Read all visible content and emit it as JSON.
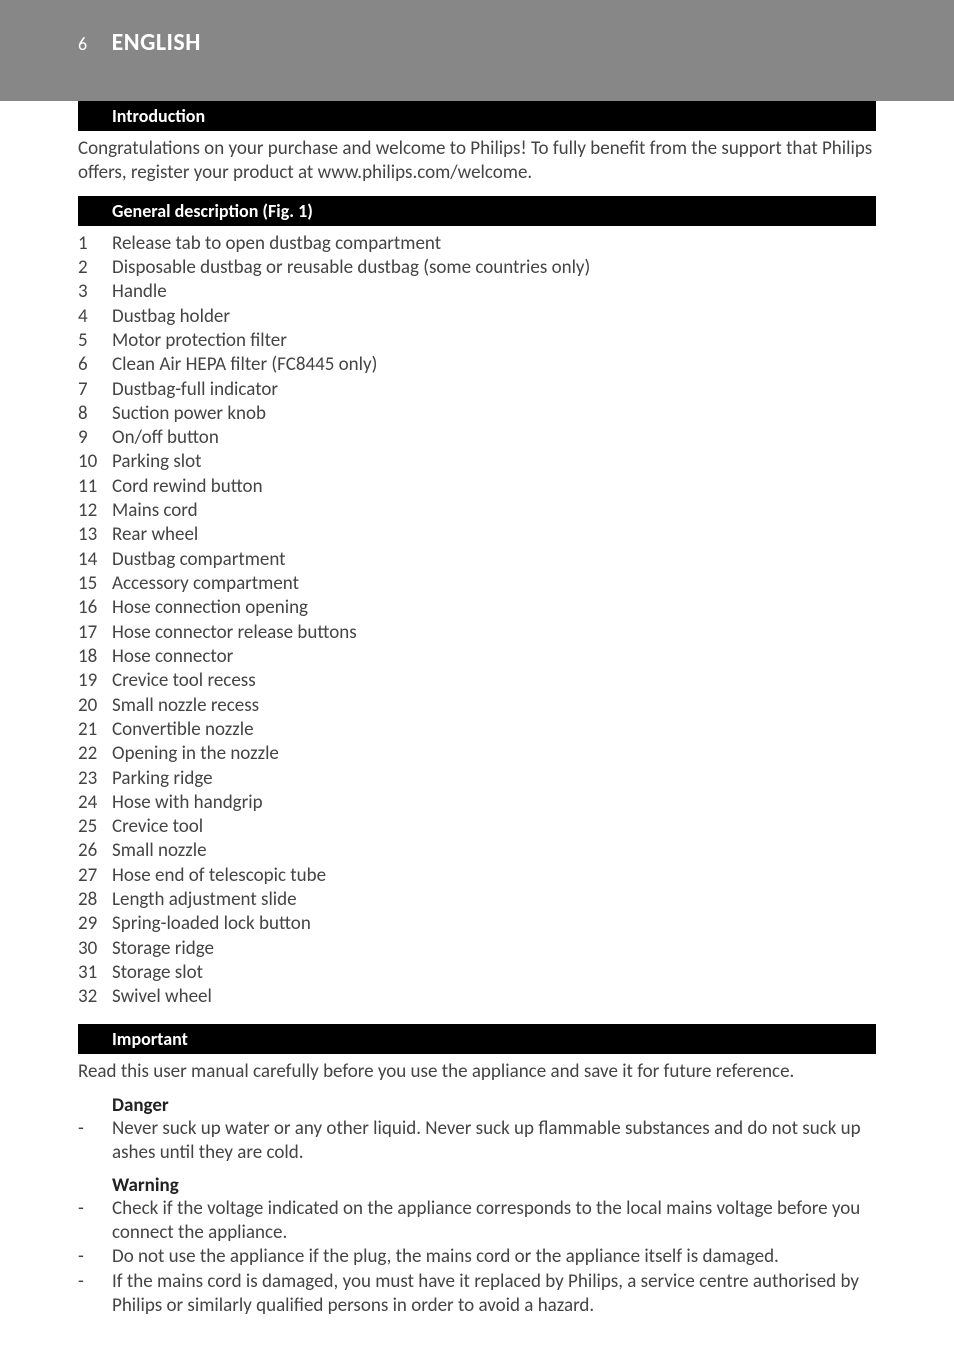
{
  "header": {
    "page_number": "6",
    "language": "ENGLISH"
  },
  "sections": {
    "introduction": {
      "heading": "Introduction",
      "text": "Congratulations on your purchase and welcome to Philips! To fully benefit from the support that Philips offers, register your product at www.philips.com/welcome."
    },
    "general_description": {
      "heading": "General description (Fig. 1)",
      "items": [
        "Release tab to open dustbag compartment",
        "Disposable dustbag or reusable dustbag (some countries only)",
        "Handle",
        "Dustbag holder",
        "Motor protection filter",
        "Clean Air HEPA filter (FC8445 only)",
        "Dustbag-full indicator",
        "Suction power knob",
        "On/off button",
        "Parking slot",
        "Cord rewind button",
        "Mains cord",
        "Rear wheel",
        "Dustbag compartment",
        "Accessory compartment",
        "Hose connection opening",
        "Hose connector release buttons",
        "Hose connector",
        "Crevice tool recess",
        "Small nozzle recess",
        "Convertible nozzle",
        "Opening in the nozzle",
        "Parking ridge",
        "Hose with handgrip",
        "Crevice tool",
        "Small nozzle",
        "Hose end of telescopic tube",
        "Length adjustment slide",
        "Spring-loaded lock button",
        "Storage ridge",
        "Storage slot",
        "Swivel wheel"
      ]
    },
    "important": {
      "heading": "Important",
      "text": "Read this user manual carefully before you use the appliance and save it for future reference.",
      "danger": {
        "heading": "Danger",
        "items": [
          "Never suck up water or any other liquid. Never suck up flammable substances and do not suck up ashes until they are cold."
        ]
      },
      "warning": {
        "heading": "Warning",
        "items": [
          "Check if the voltage indicated on the appliance corresponds to the local mains voltage before you connect the appliance.",
          "Do not use the appliance if the plug, the mains cord or the appliance itself is damaged.",
          "If the mains cord is damaged, you must have it replaced by Philips, a service centre authorised by Philips or similarly qualified persons in order to avoid a hazard."
        ]
      }
    }
  }
}
